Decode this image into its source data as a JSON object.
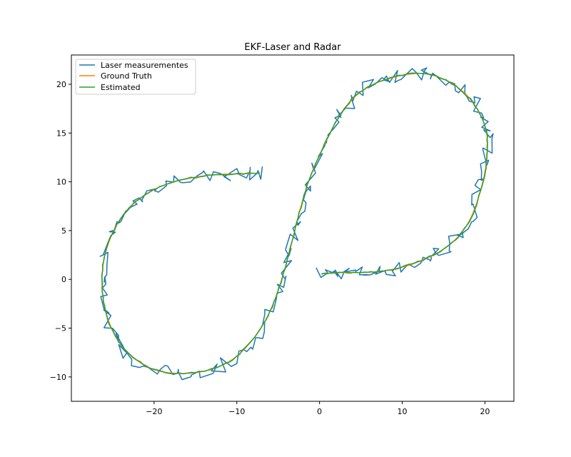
{
  "chart_data": {
    "type": "line",
    "title": "EKF-Laser and Radar",
    "xlabel": "",
    "ylabel": "",
    "xlim": [
      -30,
      23.5
    ],
    "ylim": [
      -12.5,
      23
    ],
    "xticks": [
      -20,
      -10,
      0,
      10,
      20
    ],
    "yticks": [
      -10,
      -5,
      0,
      5,
      10,
      15,
      20
    ],
    "xtick_labels": [
      "−20",
      "−10",
      "0",
      "10",
      "20"
    ],
    "ytick_labels": [
      "−10",
      "−5",
      "0",
      "5",
      "10",
      "15",
      "20"
    ],
    "grid": false,
    "legend_position": "top-left",
    "colors": {
      "laser": "#1f77b4",
      "ground_truth": "#ff7f0e",
      "estimated": "#2ca02c"
    },
    "series": [
      {
        "name": "Laser measurementes",
        "key": "laser",
        "noisy": true
      },
      {
        "name": "Ground Truth",
        "key": "ground_truth",
        "noisy": false
      },
      {
        "name": "Estimated",
        "key": "estimated",
        "noisy": false
      }
    ],
    "path": [
      [
        0.3,
        0.6
      ],
      [
        1.5,
        0.65
      ],
      [
        3,
        0.7
      ],
      [
        5,
        0.7
      ],
      [
        7,
        0.8
      ],
      [
        9,
        1.05
      ],
      [
        11,
        1.5
      ],
      [
        12.5,
        2.0
      ],
      [
        14,
        2.6
      ],
      [
        15.5,
        3.4
      ],
      [
        17,
        4.6
      ],
      [
        18.3,
        6.3
      ],
      [
        19.3,
        8.6
      ],
      [
        20.0,
        11.0
      ],
      [
        20.3,
        13.2
      ],
      [
        20.2,
        15.0
      ],
      [
        19.5,
        16.8
      ],
      [
        18.2,
        18.5
      ],
      [
        16.5,
        19.8
      ],
      [
        14.5,
        20.7
      ],
      [
        12.5,
        21.1
      ],
      [
        10.5,
        21.0
      ],
      [
        8.5,
        20.6
      ],
      [
        6.5,
        20.0
      ],
      [
        4.5,
        18.9
      ],
      [
        3.0,
        17.5
      ],
      [
        1.7,
        15.7
      ],
      [
        0.6,
        13.8
      ],
      [
        -0.5,
        11.8
      ],
      [
        -1.5,
        9.6
      ],
      [
        -2.3,
        7.3
      ],
      [
        -3.0,
        5.0
      ],
      [
        -3.7,
        2.6
      ],
      [
        -4.5,
        0.2
      ],
      [
        -5.5,
        -2.3
      ],
      [
        -6.8,
        -4.6
      ],
      [
        -8.5,
        -6.6
      ],
      [
        -10.5,
        -8.2
      ],
      [
        -13.0,
        -9.2
      ],
      [
        -15.5,
        -9.6
      ],
      [
        -18.0,
        -9.6
      ],
      [
        -20.5,
        -9.1
      ],
      [
        -22.5,
        -8.0
      ],
      [
        -24.2,
        -6.5
      ],
      [
        -25.4,
        -4.5
      ],
      [
        -26.1,
        -2.3
      ],
      [
        -26.3,
        0
      ],
      [
        -26.0,
        2.3
      ],
      [
        -25.2,
        4.4
      ],
      [
        -24.0,
        6.3
      ],
      [
        -22.3,
        7.9
      ],
      [
        -20.2,
        9.1
      ],
      [
        -18.0,
        9.9
      ],
      [
        -15.5,
        10.4
      ],
      [
        -13.0,
        10.7
      ],
      [
        -10.5,
        10.8
      ],
      [
        -8.5,
        10.85
      ],
      [
        -7.2,
        10.9
      ]
    ]
  }
}
